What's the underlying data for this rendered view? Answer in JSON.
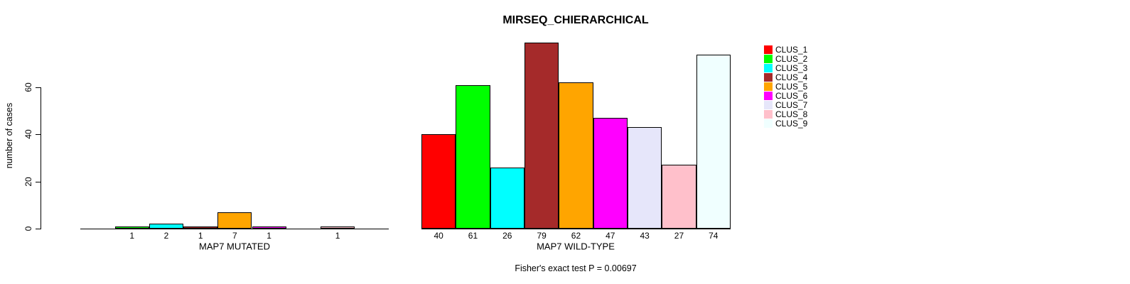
{
  "chart_data": {
    "type": "bar",
    "title": "MIRSEQ_CHIERARCHICAL",
    "ylabel": "number of cases",
    "footer": "Fisher's exact test P = 0.00697",
    "ylim": [
      0,
      79
    ],
    "yticks": [
      0,
      20,
      40,
      60
    ],
    "grid": false,
    "legend_position": "right",
    "categories": [
      "CLUS_1",
      "CLUS_2",
      "CLUS_3",
      "CLUS_4",
      "CLUS_5",
      "CLUS_6",
      "CLUS_7",
      "CLUS_8",
      "CLUS_9"
    ],
    "palette": [
      "#ff0000",
      "#00ff00",
      "#00ffff",
      "#a52a2a",
      "#ffa500",
      "#ff00ff",
      "#e6e6fa",
      "#ffc0cb",
      "#f0ffff"
    ],
    "panels": [
      {
        "label": "MAP7 MUTATED",
        "values": [
          0,
          1,
          2,
          1,
          7,
          1,
          0,
          1,
          0
        ]
      },
      {
        "label": "MAP7 WILD-TYPE",
        "values": [
          40,
          61,
          26,
          79,
          62,
          47,
          43,
          27,
          74
        ]
      }
    ]
  }
}
